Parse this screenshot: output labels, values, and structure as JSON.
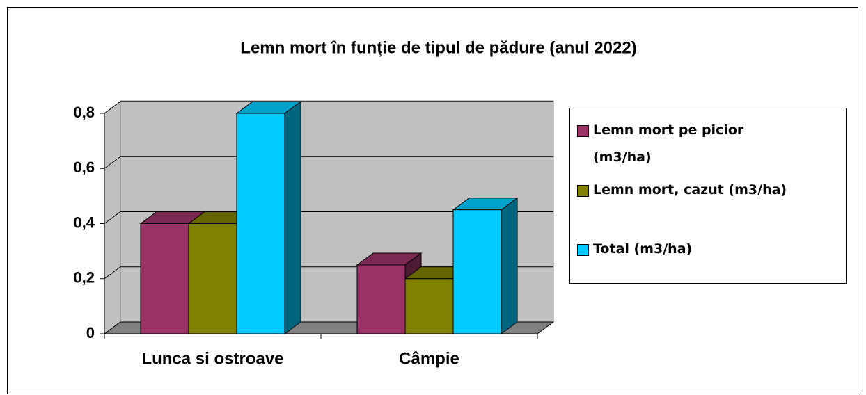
{
  "chart_data": {
    "type": "bar3d",
    "title": "Lemn mort în funţie de tipul de pădure (anul 2022)",
    "categories": [
      "Lunca si ostroave",
      "Câmpie"
    ],
    "series": [
      {
        "name": "Lemn mort pe picior (m3/ha)",
        "color": "#993366",
        "values": [
          0.4,
          0.25
        ]
      },
      {
        "name": "Lemn mort, cazut (m3/ha)",
        "color": "#808000",
        "values": [
          0.4,
          0.2
        ]
      },
      {
        "name": "Total (m3/ha)",
        "color": "#00ccff",
        "values": [
          0.8,
          0.45
        ]
      }
    ],
    "ylim": [
      0,
      0.8
    ],
    "yticks": [
      0,
      {
        "value": 0.2,
        "label": "0,2"
      },
      {
        "value": 0.4,
        "label": "0,4"
      },
      {
        "value": 0.6,
        "label": "0,6"
      },
      {
        "value": 0.8,
        "label": "0,8"
      }
    ],
    "grid": true,
    "legend": "right"
  }
}
